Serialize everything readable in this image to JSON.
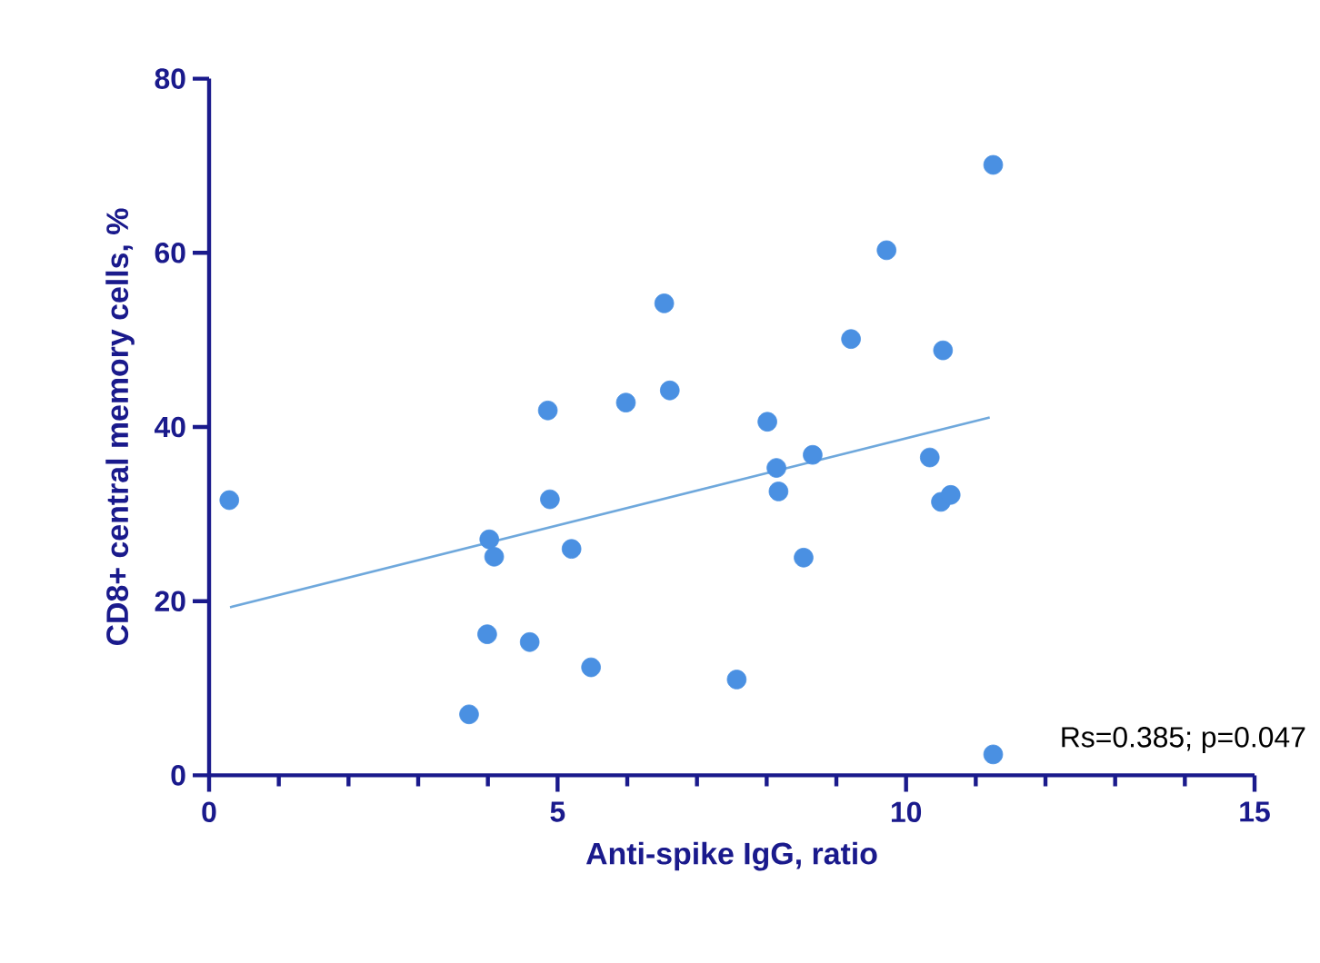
{
  "chart_data": {
    "type": "scatter",
    "xlabel": "Anti-spike IgG, ratio",
    "ylabel": "CD8+ central memory cells, %",
    "annotations": [
      "Rs=0.385; p=0.047"
    ],
    "xlim": [
      0,
      15
    ],
    "ylim": [
      0,
      80
    ],
    "xticks": [
      0,
      5,
      10,
      15
    ],
    "yticks": [
      0,
      20,
      40,
      60,
      80
    ],
    "grid": false,
    "series": [
      {
        "marker": "circle",
        "color": "#4a90e2",
        "x": [
          0.29,
          4.86,
          5.98,
          6.53,
          6.61,
          4.89,
          4.02,
          4.09,
          5.2,
          3.99,
          4.6,
          5.48,
          3.73,
          7.57,
          11.25,
          9.72,
          9.21,
          10.53,
          8.01,
          8.14,
          8.66,
          8.17,
          10.34,
          10.5,
          10.64,
          8.53,
          11.25
        ],
        "values": [
          31.6,
          41.9,
          42.8,
          54.2,
          44.2,
          31.7,
          27.1,
          25.1,
          26.0,
          16.2,
          15.3,
          12.4,
          7.0,
          11.0,
          70.1,
          60.3,
          50.1,
          48.8,
          40.6,
          35.3,
          36.8,
          32.6,
          36.5,
          31.4,
          32.2,
          25.0,
          2.4
        ]
      },
      {
        "type": "line",
        "marker": "none",
        "color": "#6fa8dc",
        "line_style": "solid",
        "x": [
          0.3,
          11.2
        ],
        "values": [
          19.3,
          41.1
        ]
      }
    ]
  }
}
